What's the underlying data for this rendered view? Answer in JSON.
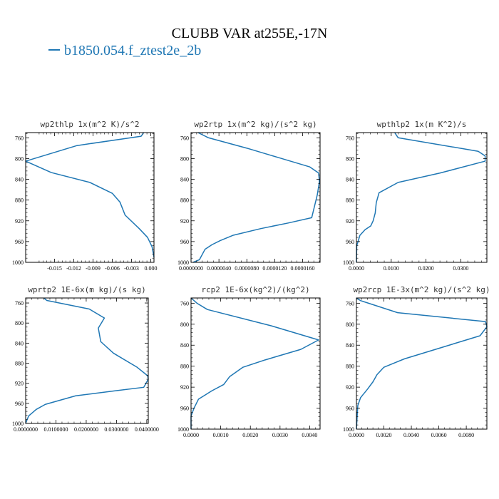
{
  "title": "CLUBB VAR at255E,-17N",
  "legend": {
    "label": "b1850.054.f_ztest2e_2b",
    "color": "#1f77b4"
  },
  "chart_data": [
    {
      "type": "line",
      "title": "wp2thlp  1x(m^2 K)/s^2",
      "xlim": [
        -0.0195,
        0.0005
      ],
      "ylim": [
        1000,
        750
      ],
      "xticks": [
        -0.015,
        -0.012,
        -0.009,
        -0.006,
        -0.003,
        0.0
      ],
      "xtick_labels": [
        "-0.015",
        "-0.012",
        "-0.009",
        "-0.006",
        "-0.003",
        "0.000"
      ],
      "yticks": [
        760,
        800,
        840,
        880,
        920,
        960,
        1000
      ],
      "series": [
        {
          "color": "#1f77b4",
          "x": [
            -0.0011,
            -0.0015,
            -0.0115,
            -0.0195,
            -0.0155,
            -0.0095,
            -0.006,
            -0.0048,
            -0.004,
            -0.0018,
            -0.0005,
            0.0002,
            0.0005
          ],
          "y": [
            750,
            757,
            775,
            805,
            827,
            846,
            867,
            884,
            909,
            935,
            952,
            970,
            990
          ]
        }
      ]
    },
    {
      "type": "line",
      "title": "wp2rtp  1x(m^2 kg)/(s^2 kg)",
      "xlim": [
        0.0,
        1.85e-05
      ],
      "ylim": [
        1000,
        750
      ],
      "xticks": [
        0.0,
        4e-06,
        8e-06,
        1.2e-05,
        1.6e-05
      ],
      "xtick_labels": [
        "0.0000000",
        "0.0000040",
        "0.0000080",
        "0.0000120",
        "0.0000160"
      ],
      "yticks": [
        760,
        800,
        840,
        880,
        920,
        960,
        1000
      ],
      "series": [
        {
          "color": "#1f77b4",
          "x": [
            1e-06,
            2.5e-06,
            8e-06,
            1.25e-05,
            1.7e-05,
            1.83e-05,
            1.84e-05,
            1.81e-05,
            1.73e-05,
            1.4e-05,
            1e-05,
            6e-06,
            4.2e-06,
            3e-06,
            2e-06,
            1.2e-06,
            3e-07
          ],
          "y": [
            750,
            760,
            780,
            798,
            816,
            828,
            845,
            870,
            914,
            924,
            935,
            948,
            958,
            966,
            975,
            995,
            1000
          ]
        }
      ]
    },
    {
      "type": "line",
      "title": "wpthlp2  1x(m K^2)/s",
      "xlim": [
        0.0,
        0.0375
      ],
      "ylim": [
        1000,
        750
      ],
      "xticks": [
        0.0,
        0.01,
        0.02,
        0.03
      ],
      "xtick_labels": [
        "0.0000",
        "0.0100",
        "0.0200",
        "0.0300"
      ],
      "yticks": [
        760,
        800,
        840,
        880,
        920,
        960,
        1000
      ],
      "series": [
        {
          "color": "#1f77b4",
          "x": [
            0.011,
            0.012,
            0.035,
            0.037,
            0.037,
            0.024,
            0.012,
            0.0065,
            0.0057,
            0.0054,
            0.0048,
            0.0041,
            0.0025,
            0.001,
            0.0001,
            0.0
          ],
          "y": [
            750,
            760,
            786,
            795,
            805,
            828,
            846,
            866,
            885,
            905,
            920,
            930,
            937,
            948,
            968,
            1000
          ]
        }
      ]
    },
    {
      "type": "line",
      "title": "wprtp2  1E-6x(m kg)/(s kg)",
      "xlim": [
        0.0,
        0.0405
      ],
      "ylim": [
        1000,
        750
      ],
      "xticks": [
        0.0,
        0.01,
        0.02,
        0.03,
        0.04
      ],
      "xtick_labels": [
        "0.0000000",
        "0.0100000",
        "0.0200000",
        "0.0300000",
        "0.0400000"
      ],
      "yticks": [
        760,
        800,
        840,
        880,
        920,
        960,
        1000
      ],
      "series": [
        {
          "color": "#1f77b4",
          "x": [
            0.006,
            0.007,
            0.021,
            0.026,
            0.024,
            0.0248,
            0.029,
            0.0368,
            0.0403,
            0.0405,
            0.039,
            0.0295,
            0.0165,
            0.0065,
            0.0035,
            0.001,
            0.0003,
            0.0
          ],
          "y": [
            750,
            755,
            772,
            790,
            810,
            837,
            860,
            888,
            905,
            912,
            928,
            935,
            945,
            962,
            972,
            985,
            995,
            1000
          ]
        }
      ]
    },
    {
      "type": "line",
      "title": "rcp2  1E-6x(kg^2)/(kg^2)",
      "xlim": [
        0.0,
        0.00435
      ],
      "ylim": [
        1000,
        750
      ],
      "xticks": [
        0.0,
        0.001,
        0.002,
        0.003,
        0.004
      ],
      "xtick_labels": [
        "0.0000",
        "0.0010",
        "0.0020",
        "0.0030",
        "0.0040"
      ],
      "yticks": [
        760,
        800,
        840,
        880,
        920,
        960,
        1000
      ],
      "series": [
        {
          "color": "#1f77b4",
          "x": [
            0.0,
            0.0002,
            0.00055,
            0.0027,
            0.0043,
            0.0037,
            0.0025,
            0.00175,
            0.0013,
            0.0011,
            0.0007,
            0.00025,
            0.0001,
            0.0,
            0.0
          ],
          "y": [
            750,
            760,
            772,
            803,
            830,
            848,
            868,
            882,
            900,
            915,
            927,
            943,
            960,
            975,
            1000
          ]
        }
      ]
    },
    {
      "type": "line",
      "title": "wp2rcp  1E-3x(m^2 kg)/(s^2 kg)",
      "xlim": [
        0.0,
        0.0095
      ],
      "ylim": [
        1000,
        750
      ],
      "xticks": [
        0.0,
        0.002,
        0.004,
        0.006,
        0.008
      ],
      "xtick_labels": [
        "0.0000",
        "0.0020",
        "0.0040",
        "0.0060",
        "0.0080"
      ],
      "yticks": [
        760,
        800,
        840,
        880,
        920,
        960,
        1000
      ],
      "series": [
        {
          "color": "#1f77b4",
          "x": [
            0.0,
            0.0003,
            0.003,
            0.0094,
            0.0095,
            0.009,
            0.0035,
            0.002,
            0.0015,
            0.0012,
            0.0008,
            0.0003,
            0.0001,
            0.0
          ],
          "y": [
            750,
            755,
            778,
            795,
            805,
            822,
            866,
            882,
            896,
            910,
            924,
            940,
            955,
            1000
          ]
        }
      ]
    }
  ]
}
